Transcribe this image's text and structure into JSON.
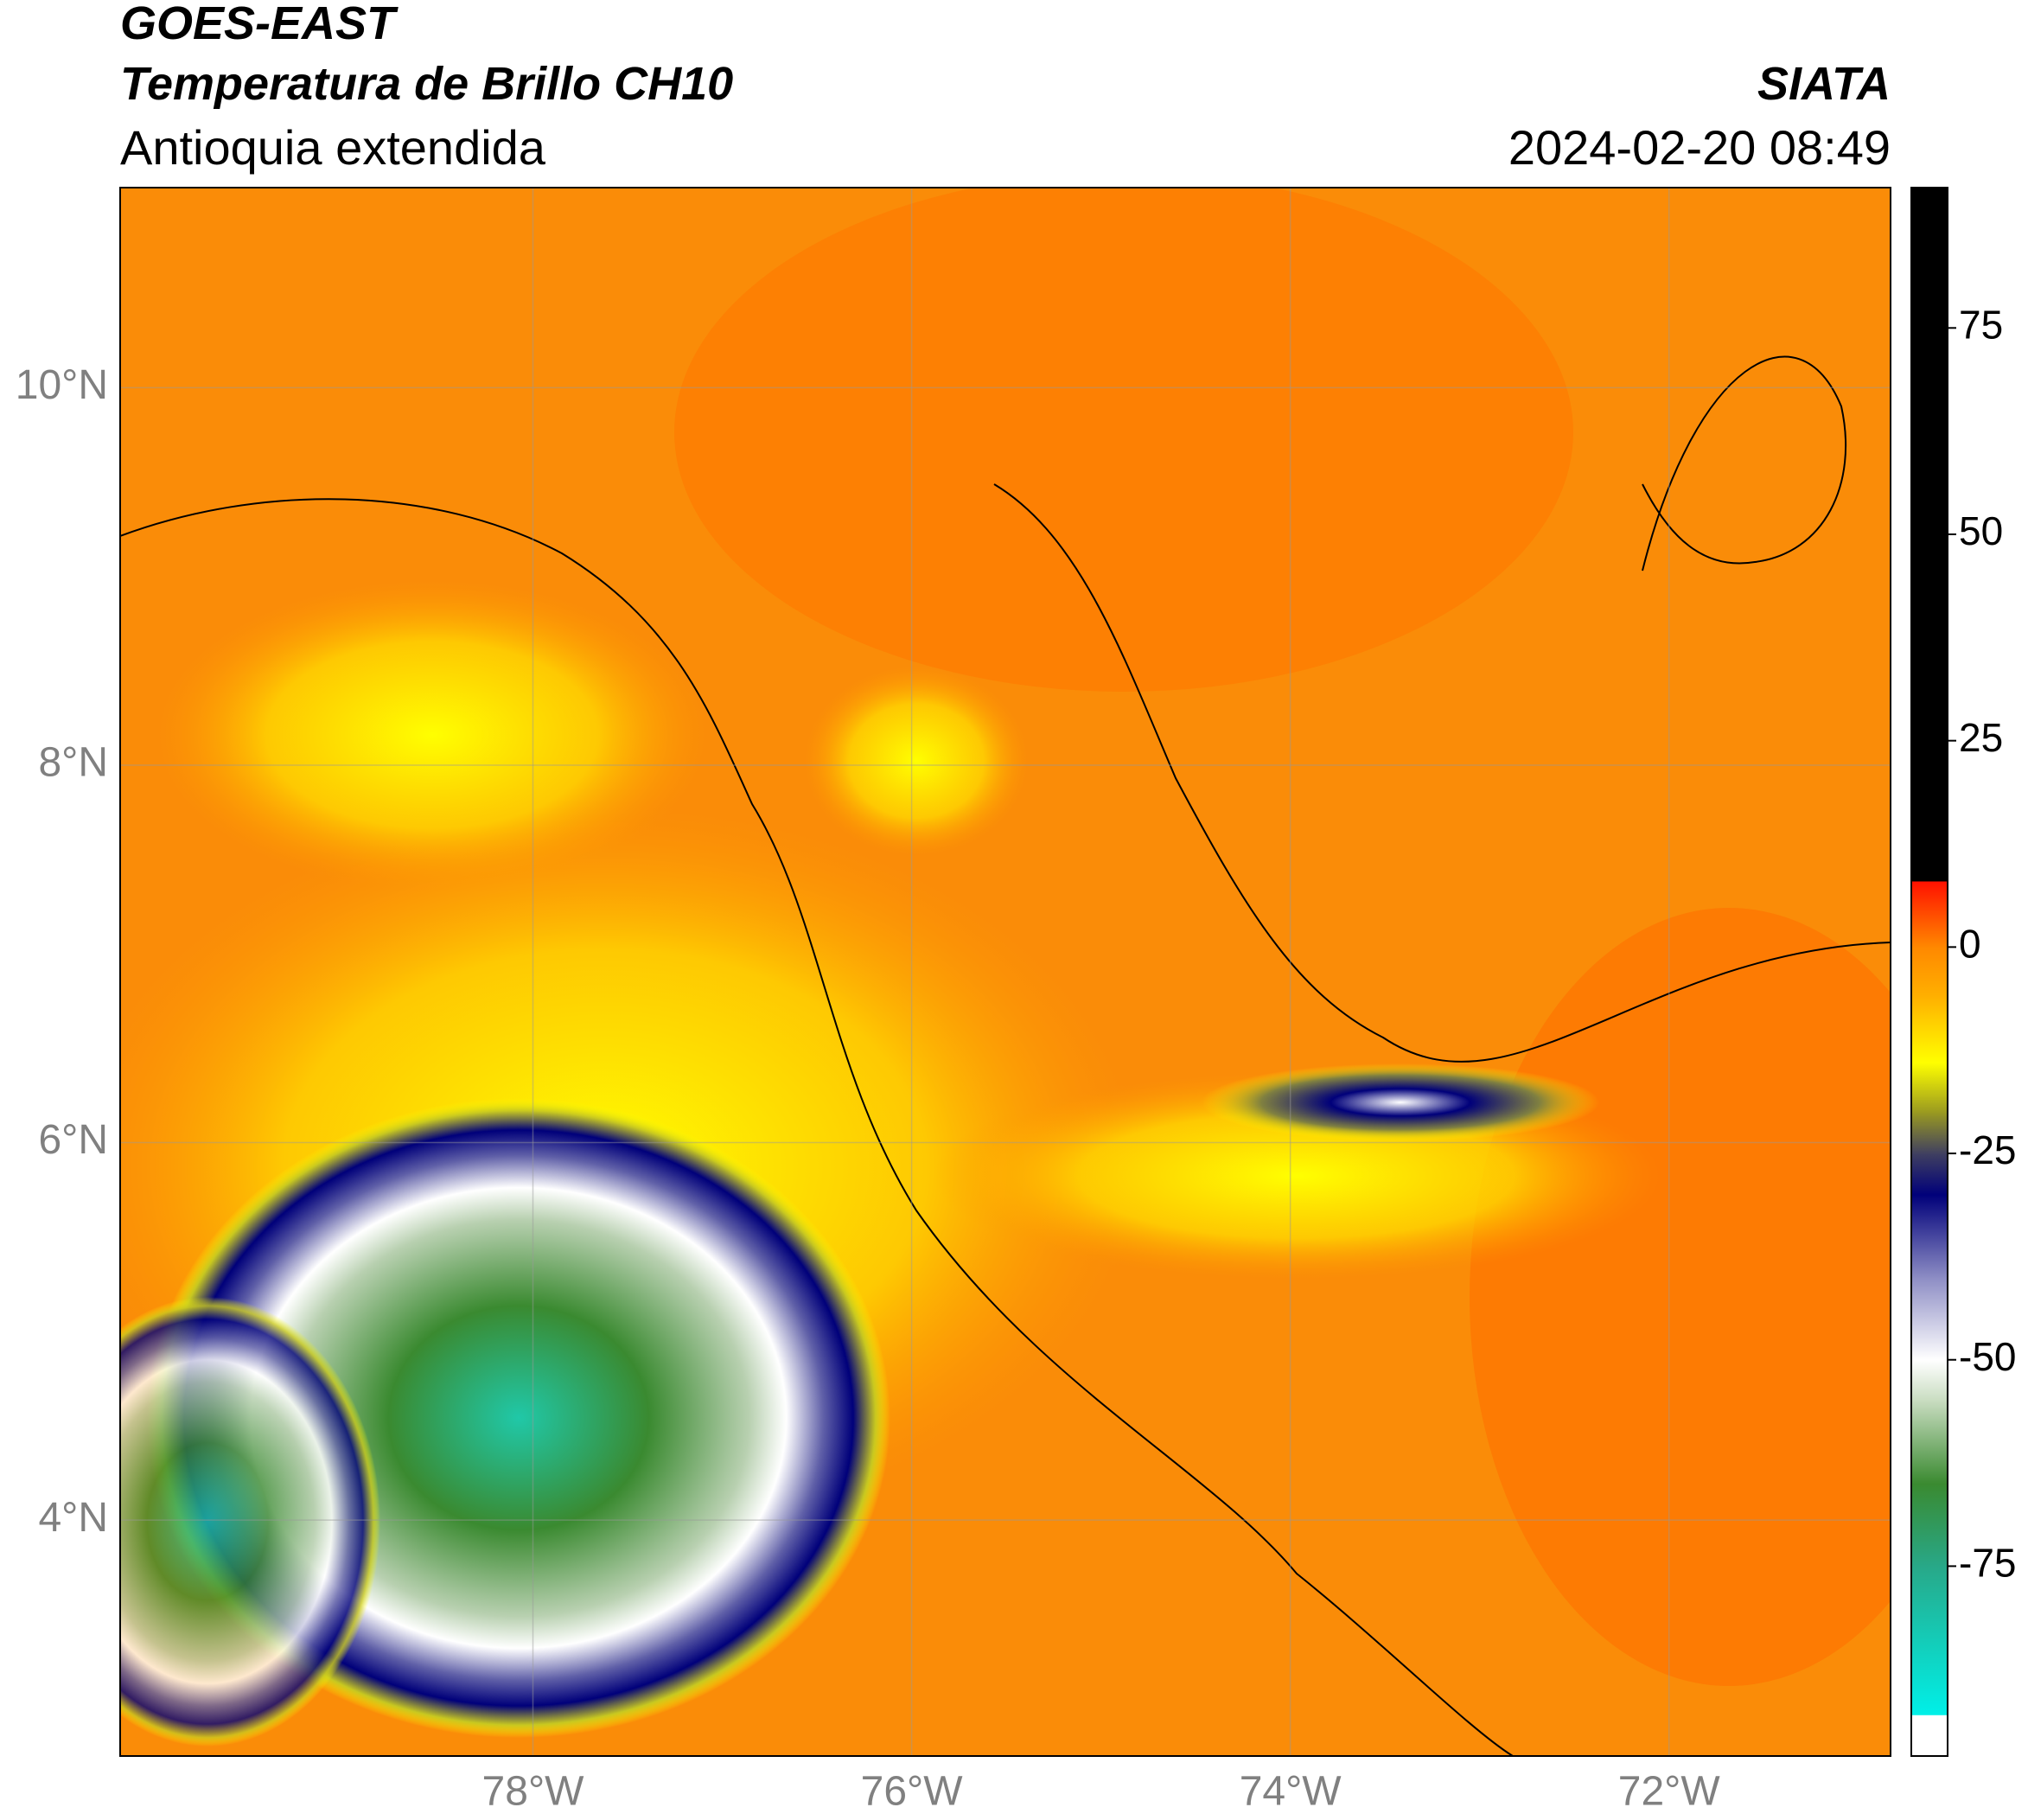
{
  "header": {
    "satellite": "GOES-EAST",
    "product": "Temperatura de Brillo CH10",
    "region": "Antioquia extendida",
    "agency": "SIATA",
    "datetime": "2024-02-20 08:49"
  },
  "map": {
    "lon_range": [
      -80.18,
      -70.83
    ],
    "lat_range": [
      2.75,
      11.06
    ],
    "lon_ticks": [
      {
        "value": -78,
        "label": "78°W"
      },
      {
        "value": -76,
        "label": "76°W"
      },
      {
        "value": -74,
        "label": "74°W"
      },
      {
        "value": -72,
        "label": "72°W"
      }
    ],
    "lat_ticks": [
      {
        "value": 10,
        "label": "10°N"
      },
      {
        "value": 8,
        "label": "8°N"
      },
      {
        "value": 6,
        "label": "6°N"
      },
      {
        "value": 4,
        "label": "4°N"
      }
    ]
  },
  "colorbar": {
    "range": [
      -98,
      92
    ],
    "ticks": [
      -75,
      -50,
      -25,
      0,
      25,
      50,
      75
    ],
    "stops": [
      {
        "value": -98,
        "color": "#ffffff"
      },
      {
        "value": -93,
        "color": "#ffffff"
      },
      {
        "value": -93,
        "color": "#00f0e8"
      },
      {
        "value": -75,
        "color": "#28a888"
      },
      {
        "value": -65,
        "color": "#3a8a30"
      },
      {
        "value": -55,
        "color": "#c8dcc0"
      },
      {
        "value": -50,
        "color": "#ffffff"
      },
      {
        "value": -40,
        "color": "#8c8cc4"
      },
      {
        "value": -30,
        "color": "#00007a"
      },
      {
        "value": -25,
        "color": "#404060"
      },
      {
        "value": -20,
        "color": "#9a9a20"
      },
      {
        "value": -14,
        "color": "#ffff00"
      },
      {
        "value": -6,
        "color": "#ffb000"
      },
      {
        "value": 0,
        "color": "#ff8800"
      },
      {
        "value": 8,
        "color": "#ff1000"
      },
      {
        "value": 8,
        "color": "#000000"
      },
      {
        "value": 92,
        "color": "#000000"
      }
    ]
  }
}
